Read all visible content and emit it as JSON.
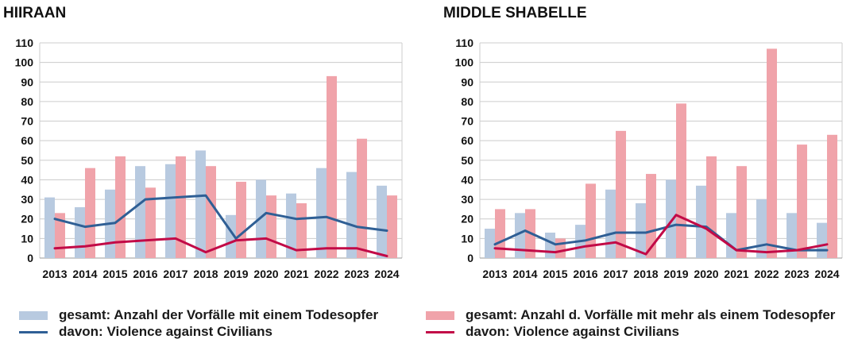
{
  "colors": {
    "bar_single": "#b8cae0",
    "bar_multi": "#f0a3aa",
    "line_blue": "#2f5f95",
    "line_red": "#c20a47",
    "grid": "#cccccc"
  },
  "chart_data": [
    {
      "type": "bar",
      "title": "HIIRAAN",
      "categories": [
        "2013",
        "2014",
        "2015",
        "2016",
        "2017",
        "2018",
        "2019",
        "2020",
        "2021",
        "2022",
        "2023",
        "2024"
      ],
      "ylim": [
        0,
        110
      ],
      "yticks": [
        0,
        10,
        20,
        30,
        40,
        50,
        60,
        70,
        80,
        90,
        100,
        110
      ],
      "grid": true,
      "series": [
        {
          "kind": "bar",
          "color_key": "bar_single",
          "values": [
            31,
            26,
            35,
            47,
            48,
            55,
            22,
            40,
            33,
            46,
            44,
            37
          ]
        },
        {
          "kind": "bar",
          "color_key": "bar_multi",
          "values": [
            23,
            46,
            52,
            36,
            52,
            47,
            39,
            32,
            28,
            93,
            61,
            32
          ]
        },
        {
          "kind": "line",
          "color_key": "line_blue",
          "values": [
            20,
            16,
            18,
            30,
            31,
            32,
            10,
            23,
            20,
            21,
            16,
            14
          ]
        },
        {
          "kind": "line",
          "color_key": "line_red",
          "values": [
            5,
            6,
            8,
            9,
            10,
            3,
            9,
            10,
            4,
            5,
            5,
            1
          ]
        }
      ]
    },
    {
      "type": "bar",
      "title": "MIDDLE SHABELLE",
      "categories": [
        "2013",
        "2014",
        "2015",
        "2016",
        "2017",
        "2018",
        "2019",
        "2020",
        "2021",
        "2022",
        "2023",
        "2024"
      ],
      "ylim": [
        0,
        110
      ],
      "yticks": [
        0,
        10,
        20,
        30,
        40,
        50,
        60,
        70,
        80,
        90,
        100,
        110
      ],
      "grid": true,
      "series": [
        {
          "kind": "bar",
          "color_key": "bar_single",
          "values": [
            15,
            23,
            13,
            17,
            35,
            28,
            40,
            37,
            23,
            30,
            23,
            18
          ]
        },
        {
          "kind": "bar",
          "color_key": "bar_multi",
          "values": [
            25,
            25,
            10,
            38,
            65,
            43,
            79,
            52,
            47,
            107,
            58,
            63
          ]
        },
        {
          "kind": "line",
          "color_key": "line_blue",
          "values": [
            7,
            14,
            7,
            9,
            13,
            13,
            17,
            16,
            4,
            7,
            4,
            4
          ]
        },
        {
          "kind": "line",
          "color_key": "line_red",
          "values": [
            5,
            4,
            3,
            6,
            8,
            2,
            22,
            15,
            4,
            3,
            4,
            7
          ]
        }
      ]
    }
  ],
  "legend": {
    "left": [
      {
        "label": "gesamt: Anzahl der Vorfälle mit einem Todesopfer",
        "swatch": "bar",
        "color_key": "bar_single"
      },
      {
        "label": "davon:   Violence against Civilians",
        "swatch": "line",
        "color_key": "line_blue"
      }
    ],
    "right": [
      {
        "label": "gesamt: Anzahl d. Vorfälle mit mehr als einem Todesopfer",
        "swatch": "bar",
        "color_key": "bar_multi"
      },
      {
        "label": "davon:   Violence against Civilians",
        "swatch": "line",
        "color_key": "line_red"
      }
    ]
  }
}
